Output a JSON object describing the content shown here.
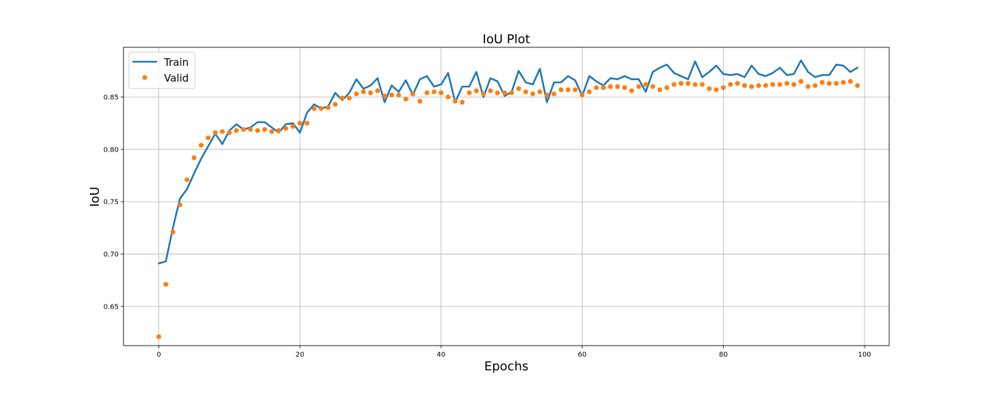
{
  "chart_data": {
    "type": "line",
    "title": "IoU Plot",
    "xlabel": "Epochs",
    "ylabel": "IoU",
    "xlim": [
      -5,
      103.5
    ],
    "ylim": [
      0.6125,
      0.8975
    ],
    "xticks": [
      0,
      20,
      40,
      60,
      80,
      100
    ],
    "yticks": [
      0.65,
      0.7,
      0.75,
      0.8,
      0.85
    ],
    "xtick_labels": [
      "0",
      "20",
      "40",
      "60",
      "80",
      "100"
    ],
    "ytick_labels": [
      "0.65",
      "0.70",
      "0.75",
      "0.80",
      "0.85"
    ],
    "grid": true,
    "legend_position": "top-left",
    "series": [
      {
        "name": "Train",
        "style": "line",
        "color": "#1f77b4",
        "x": [
          0,
          1,
          2,
          3,
          4,
          5,
          6,
          7,
          8,
          9,
          10,
          11,
          12,
          13,
          14,
          15,
          16,
          17,
          18,
          19,
          20,
          21,
          22,
          23,
          24,
          25,
          26,
          27,
          28,
          29,
          30,
          31,
          32,
          33,
          34,
          35,
          36,
          37,
          38,
          39,
          40,
          41,
          42,
          43,
          44,
          45,
          46,
          47,
          48,
          49,
          50,
          51,
          52,
          53,
          54,
          55,
          56,
          57,
          58,
          59,
          60,
          61,
          62,
          63,
          64,
          65,
          66,
          67,
          68,
          69,
          70,
          71,
          72,
          73,
          74,
          75,
          76,
          77,
          78,
          79,
          80,
          81,
          82,
          83,
          84,
          85,
          86,
          87,
          88,
          89,
          90,
          91,
          92,
          93,
          94,
          95,
          96,
          97,
          98,
          99
        ],
        "values": [
          0.691,
          0.693,
          0.725,
          0.753,
          0.762,
          0.777,
          0.791,
          0.803,
          0.815,
          0.805,
          0.818,
          0.824,
          0.819,
          0.821,
          0.826,
          0.826,
          0.821,
          0.816,
          0.824,
          0.825,
          0.816,
          0.835,
          0.843,
          0.839,
          0.841,
          0.854,
          0.847,
          0.854,
          0.867,
          0.858,
          0.861,
          0.868,
          0.845,
          0.861,
          0.855,
          0.866,
          0.852,
          0.867,
          0.87,
          0.86,
          0.862,
          0.873,
          0.845,
          0.86,
          0.86,
          0.874,
          0.85,
          0.868,
          0.865,
          0.851,
          0.855,
          0.875,
          0.864,
          0.862,
          0.877,
          0.845,
          0.864,
          0.864,
          0.87,
          0.866,
          0.851,
          0.87,
          0.865,
          0.861,
          0.868,
          0.867,
          0.87,
          0.867,
          0.867,
          0.855,
          0.874,
          0.878,
          0.881,
          0.873,
          0.87,
          0.867,
          0.884,
          0.869,
          0.874,
          0.88,
          0.872,
          0.871,
          0.872,
          0.869,
          0.88,
          0.872,
          0.87,
          0.873,
          0.878,
          0.871,
          0.872,
          0.885,
          0.874,
          0.869,
          0.871,
          0.871,
          0.881,
          0.88,
          0.874,
          0.878
        ]
      },
      {
        "name": "Valid",
        "style": "scatter",
        "color": "#ff7f0e",
        "x": [
          0,
          1,
          2,
          3,
          4,
          5,
          6,
          7,
          8,
          9,
          10,
          11,
          12,
          13,
          14,
          15,
          16,
          17,
          18,
          19,
          20,
          21,
          22,
          23,
          24,
          25,
          26,
          27,
          28,
          29,
          30,
          31,
          32,
          33,
          34,
          35,
          36,
          37,
          38,
          39,
          40,
          41,
          42,
          43,
          44,
          45,
          46,
          47,
          48,
          49,
          50,
          51,
          52,
          53,
          54,
          55,
          56,
          57,
          58,
          59,
          60,
          61,
          62,
          63,
          64,
          65,
          66,
          67,
          68,
          69,
          70,
          71,
          72,
          73,
          74,
          75,
          76,
          77,
          78,
          79,
          80,
          81,
          82,
          83,
          84,
          85,
          86,
          87,
          88,
          89,
          90,
          91,
          92,
          93,
          94,
          95,
          96,
          97,
          98,
          99
        ],
        "values": [
          0.621,
          0.671,
          0.721,
          0.747,
          0.771,
          0.792,
          0.804,
          0.811,
          0.816,
          0.817,
          0.816,
          0.818,
          0.819,
          0.819,
          0.818,
          0.819,
          0.817,
          0.818,
          0.82,
          0.822,
          0.825,
          0.825,
          0.839,
          0.839,
          0.84,
          0.843,
          0.849,
          0.849,
          0.853,
          0.855,
          0.854,
          0.856,
          0.851,
          0.852,
          0.852,
          0.848,
          0.853,
          0.846,
          0.854,
          0.855,
          0.854,
          0.85,
          0.846,
          0.845,
          0.854,
          0.856,
          0.853,
          0.856,
          0.854,
          0.854,
          0.854,
          0.858,
          0.855,
          0.853,
          0.855,
          0.852,
          0.853,
          0.857,
          0.857,
          0.857,
          0.852,
          0.855,
          0.859,
          0.859,
          0.86,
          0.86,
          0.859,
          0.856,
          0.86,
          0.862,
          0.86,
          0.857,
          0.859,
          0.862,
          0.863,
          0.863,
          0.862,
          0.862,
          0.858,
          0.857,
          0.859,
          0.862,
          0.863,
          0.861,
          0.86,
          0.861,
          0.861,
          0.862,
          0.862,
          0.863,
          0.862,
          0.865,
          0.86,
          0.861,
          0.864,
          0.863,
          0.863,
          0.864,
          0.865,
          0.861
        ]
      }
    ]
  }
}
